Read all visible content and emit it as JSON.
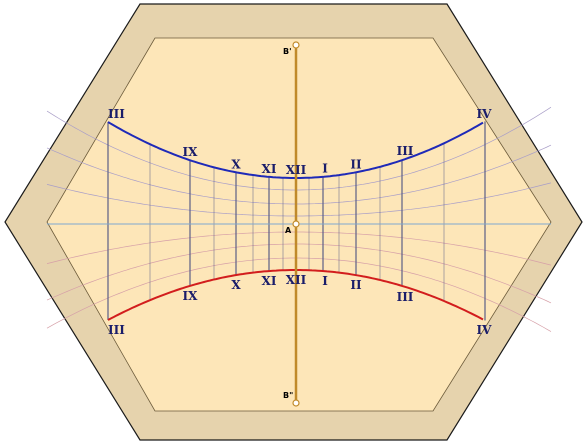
{
  "colors": {
    "frame": "#e6d3ad",
    "frame_stroke": "#1a1a1a",
    "face": "#fde6b8",
    "upper_curve": "#1f2ab8",
    "lower_curve": "#d21d1d",
    "hour_line": "#5b5f86",
    "upper_family": "#a99ec8",
    "lower_family": "#d6a0a8",
    "horizon": "#7fa8cf",
    "gnomon": "#c08a2a",
    "label": "#1a1d6a"
  },
  "upper_labels": [
    "III",
    "IX",
    "X",
    "XI",
    "XII",
    "I",
    "II",
    "III",
    "IV"
  ],
  "lower_labels": [
    "III",
    "IX",
    "X",
    "XI",
    "XII",
    "I",
    "II",
    "III",
    "IV"
  ],
  "points": {
    "top": "B'",
    "center": "A",
    "bottom": "B\""
  }
}
